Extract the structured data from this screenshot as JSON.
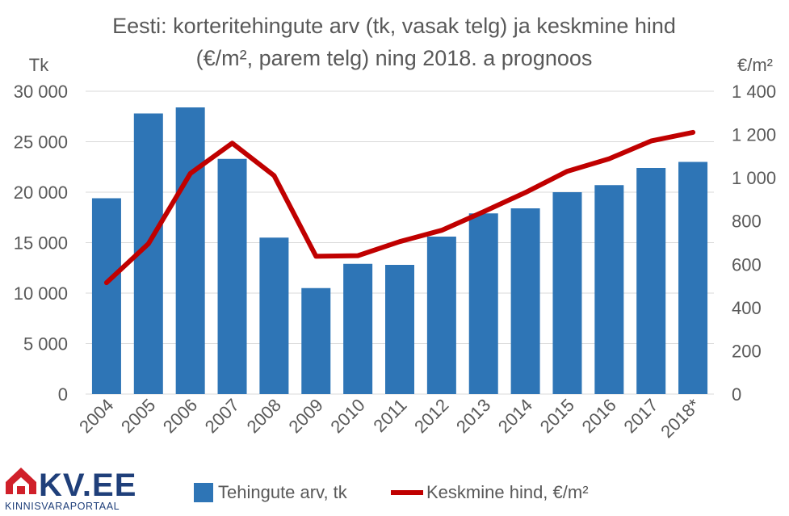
{
  "chart_data": {
    "type": "bar",
    "title_line1": "Eesti: korteritehingute arv (tk, vasak telg) ja keskmine hind",
    "title_line2": "(€/m², parem telg) ning 2018. a prognoos",
    "left_unit": "Tk",
    "right_unit": "€/m²",
    "categories": [
      "2004",
      "2005",
      "2006",
      "2007",
      "2008",
      "2009",
      "2010",
      "2011",
      "2012",
      "2013",
      "2014",
      "2015",
      "2016",
      "2017",
      "2018*"
    ],
    "left_axis": {
      "range": [
        0,
        30000
      ],
      "ticks": [
        "0",
        "5 000",
        "10 000",
        "15 000",
        "20 000",
        "25 000",
        "30 000"
      ]
    },
    "right_axis": {
      "range": [
        0,
        1400
      ],
      "ticks": [
        "0",
        "200",
        "400",
        "600",
        "800",
        "1 000",
        "1 200",
        "1 400"
      ]
    },
    "grid": true,
    "legend_position": "bottom",
    "series": [
      {
        "name": "Tehingute arv, tk",
        "type": "bar",
        "axis": "left",
        "color": "#2e75b6",
        "values": [
          19400,
          27800,
          28400,
          23300,
          15500,
          10500,
          12900,
          12800,
          15600,
          17900,
          18400,
          20000,
          20700,
          22400,
          23000
        ]
      },
      {
        "name": "Keskmine hind, €/m²",
        "type": "line",
        "axis": "right",
        "color": "#c00000",
        "values": [
          515,
          695,
          1020,
          1160,
          1010,
          637,
          640,
          705,
          757,
          843,
          932,
          1030,
          1088,
          1170,
          1210
        ]
      }
    ]
  },
  "logo": {
    "brand": "KV.EE",
    "tagline": "KINNISVARAPORTAAL",
    "color": "#1f3f7a",
    "accent": "#d0202a"
  }
}
